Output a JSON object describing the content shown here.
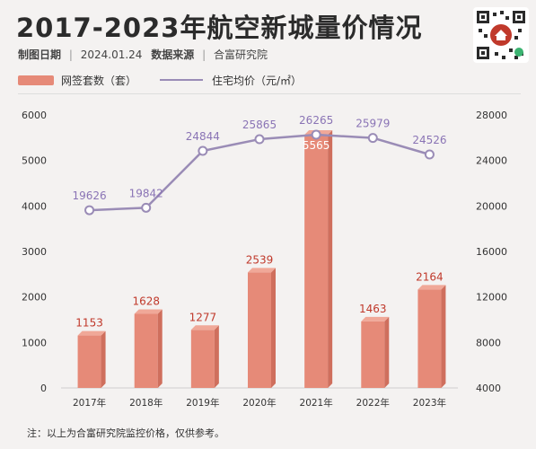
{
  "header": {
    "title": "2017-2023年航空新城量价情况",
    "meta_label": "制图日期",
    "meta_date": "2024.01.24",
    "source_label": "数据来源",
    "source_name": "合富研究院"
  },
  "legend": {
    "bar_label": "网签套数（套）",
    "line_label": "住宅均价（元/㎡）"
  },
  "note": "注：以上为合富研究院监控价格，仅供参考。",
  "colors": {
    "bar": "#e68a78",
    "bar_dark": "#cf6f5d",
    "bar_top": "#f0a898",
    "line": "#9a8cb6",
    "label_bar": "#c0392b",
    "label_line": "#8a74b5"
  },
  "chart_data": {
    "type": "bar",
    "categories": [
      "2017年",
      "2018年",
      "2019年",
      "2020年",
      "2021年",
      "2022年",
      "2023年"
    ],
    "series": [
      {
        "name": "网签套数（套）",
        "type": "bar",
        "axis": "left",
        "values": [
          1153,
          1628,
          1277,
          2539,
          5565,
          1463,
          2164
        ]
      },
      {
        "name": "住宅均价（元/㎡）",
        "type": "line",
        "axis": "right",
        "values": [
          19626,
          19842,
          24844,
          25865,
          26265,
          25979,
          24526
        ]
      }
    ],
    "y_left": {
      "min": 0,
      "max": 6000,
      "ticks": [
        0,
        1000,
        2000,
        3000,
        4000,
        5000,
        6000
      ]
    },
    "y_right": {
      "min": 4000,
      "max": 28000,
      "ticks": [
        4000,
        8000,
        12000,
        16000,
        20000,
        24000,
        28000
      ]
    },
    "grid": false,
    "legend": "top-left"
  }
}
